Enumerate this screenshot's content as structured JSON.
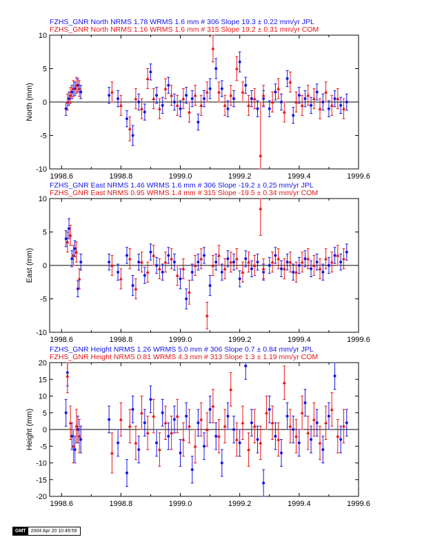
{
  "colors": {
    "jpl": "#1414e6",
    "com": "#e61414",
    "axis": "#000000"
  },
  "chart_data": [
    {
      "type": "scatter",
      "ylabel": "North (mm)",
      "xlim": [
        1998.56,
        1999.6
      ],
      "ylim": [
        -10,
        10
      ],
      "xticks": [
        1998.6,
        1998.8,
        1999.0,
        1999.2,
        1999.4,
        1999.6
      ],
      "yticks": [
        -10,
        -5,
        0,
        5,
        10
      ],
      "xtick_labels": [
        "1998.6",
        "1998.8",
        "1999.0",
        "1999.2",
        "1999.4",
        "1999.6"
      ],
      "ytick_labels": [
        "-10",
        "-5",
        "0",
        "5",
        "10"
      ],
      "legend": [
        {
          "text": "FZHS_GNR North NRMS 1.78 WRMS  1.6 mm # 306 Slope   19.3 ±  0.22 mm/yr JPL",
          "color": "#1414e6"
        },
        {
          "text": "FZHS_GNR North NRMS 1.16 WRMS  1.6 mm # 315 Slope   19.2 ±  0.31 mm/yr COM",
          "color": "#e61414"
        }
      ],
      "series": [
        {
          "color": "#1414e6",
          "marker": "circle",
          "x": [
            1998.615,
            1998.625,
            1998.635,
            1998.645,
            1998.655,
            1998.665,
            1998.76,
            1998.79,
            1998.82,
            1998.84,
            1998.86,
            1998.88,
            1998.9,
            1998.92,
            1998.94,
            1998.96,
            1998.98,
            1999.0,
            1999.02,
            1999.04,
            1999.06,
            1999.08,
            1999.1,
            1999.12,
            1999.14,
            1999.16,
            1999.18,
            1999.2,
            1999.22,
            1999.24,
            1999.26,
            1999.28,
            1999.3,
            1999.32,
            1999.34,
            1999.36,
            1999.38,
            1999.4,
            1999.42,
            1999.44,
            1999.46,
            1999.48,
            1999.5,
            1999.52,
            1999.54,
            1999.56
          ],
          "y": [
            -1,
            0.5,
            1.5,
            2,
            2.5,
            1.5,
            1,
            0.5,
            -2.5,
            -5,
            0,
            -1.5,
            4.5,
            1,
            -0.5,
            2.5,
            0,
            -1,
            1,
            0.5,
            -3,
            0.5,
            2,
            5,
            2,
            -1,
            0.5,
            6,
            2.5,
            0.5,
            -1,
            0.5,
            -1,
            1.5,
            0,
            3.5,
            -2,
            1,
            0.5,
            -0.5,
            1.5,
            0,
            -1,
            0.5,
            -0.5,
            0
          ],
          "err": [
            1,
            1,
            1,
            1,
            1,
            1,
            1.2,
            1.2,
            1.2,
            1.5,
            1.2,
            1.2,
            1.2,
            1.2,
            1.2,
            1.2,
            1.2,
            1.2,
            1.2,
            1.2,
            1.2,
            1.2,
            1.5,
            1.5,
            1.2,
            1.2,
            1.2,
            1.5,
            1.2,
            1.2,
            1.2,
            1.2,
            1.2,
            1.2,
            1.2,
            1.2,
            1.2,
            1.2,
            1.2,
            1.2,
            1.2,
            1.2,
            1.2,
            1.2,
            1.2,
            1.2
          ]
        },
        {
          "color": "#e61414",
          "marker": "triangle",
          "x": [
            1998.62,
            1998.63,
            1998.64,
            1998.65,
            1998.66,
            1998.77,
            1998.8,
            1998.83,
            1998.85,
            1998.87,
            1998.89,
            1998.91,
            1998.93,
            1998.95,
            1998.97,
            1998.99,
            1999.01,
            1999.03,
            1999.05,
            1999.07,
            1999.09,
            1999.11,
            1999.13,
            1999.15,
            1999.17,
            1999.19,
            1999.21,
            1999.23,
            1999.25,
            1999.27,
            1999.28,
            1999.31,
            1999.33,
            1999.35,
            1999.37,
            1999.39,
            1999.41,
            1999.43,
            1999.45,
            1999.47,
            1999.49,
            1999.51,
            1999.53,
            1999.55
          ],
          "y": [
            0,
            1,
            2,
            2.5,
            2,
            1.5,
            -0.5,
            -4,
            0.5,
            -1,
            3.5,
            0.5,
            -1,
            2,
            1,
            -0.5,
            0.5,
            -1.5,
            1,
            -0.5,
            1.5,
            8,
            1.5,
            -0.5,
            1,
            5,
            1.5,
            -0.5,
            0.5,
            -8,
            1,
            0,
            2,
            -1.5,
            3,
            0,
            -0.5,
            1,
            0.5,
            -1,
            1.5,
            -0.5,
            0.5,
            -1
          ],
          "err": [
            1.2,
            1.2,
            1.2,
            1.2,
            1.2,
            1.5,
            1.5,
            1.8,
            1.5,
            1.5,
            1.5,
            1.5,
            1.5,
            1.5,
            1.5,
            1.5,
            1.5,
            1.5,
            1.5,
            1.5,
            1.5,
            2,
            1.5,
            1.5,
            1.5,
            1.8,
            1.5,
            1.5,
            1.5,
            8,
            1.5,
            1.5,
            1.5,
            1.5,
            1.5,
            1.5,
            1.5,
            1.5,
            1.5,
            1.5,
            1.5,
            1.5,
            1.5,
            1.5
          ]
        }
      ]
    },
    {
      "type": "scatter",
      "ylabel": "East (mm)",
      "xlim": [
        1998.56,
        1999.6
      ],
      "ylim": [
        -10,
        10
      ],
      "xticks": [
        1998.6,
        1998.8,
        1999.0,
        1999.2,
        1999.4,
        1999.6
      ],
      "yticks": [
        -10,
        -5,
        0,
        5,
        10
      ],
      "xtick_labels": [
        "1998.6",
        "1998.8",
        "1999.0",
        "1999.2",
        "1999.4",
        "1999.6"
      ],
      "ytick_labels": [
        "-10",
        "-5",
        "0",
        "5",
        "10"
      ],
      "legend": [
        {
          "text": "FZHS_GNR East NRMS 1.46 WRMS  1.6 mm # 306 Slope  -19.2 ±  0.25 mm/yr JPL",
          "color": "#1414e6"
        },
        {
          "text": "FZHS_GNR East NRMS 0.95 WRMS  1.4 mm # 315 Slope  -19.5 ±  0.34 mm/yr COM",
          "color": "#e61414"
        }
      ],
      "series": [
        {
          "color": "#1414e6",
          "marker": "circle",
          "x": [
            1998.615,
            1998.625,
            1998.635,
            1998.645,
            1998.655,
            1998.665,
            1998.76,
            1998.79,
            1998.82,
            1998.84,
            1998.86,
            1998.88,
            1998.9,
            1998.92,
            1998.94,
            1998.96,
            1998.98,
            1999.0,
            1999.02,
            1999.04,
            1999.06,
            1999.08,
            1999.1,
            1999.12,
            1999.14,
            1999.16,
            1999.18,
            1999.2,
            1999.22,
            1999.24,
            1999.26,
            1999.28,
            1999.3,
            1999.32,
            1999.34,
            1999.36,
            1999.38,
            1999.4,
            1999.42,
            1999.44,
            1999.46,
            1999.48,
            1999.5,
            1999.52,
            1999.54,
            1999.56
          ],
          "y": [
            4,
            5.5,
            1,
            2.5,
            -3.5,
            0.5,
            0.5,
            -1,
            1.5,
            -3,
            0.5,
            -1.5,
            2,
            0,
            -1,
            1.5,
            0.5,
            -2,
            -5,
            -1,
            0.5,
            1.5,
            -3,
            0.5,
            -1,
            1,
            0.5,
            -2,
            1,
            -0.5,
            0.5,
            -1,
            0,
            1.5,
            -0.5,
            0.5,
            -1,
            0,
            1,
            -0.5,
            0.5,
            -1,
            0,
            1.5,
            0.5,
            2
          ],
          "err": [
            1.2,
            1.5,
            1.2,
            1.2,
            1.2,
            1.2,
            1.2,
            1.2,
            1.2,
            1.5,
            1.2,
            1.2,
            1.2,
            1.2,
            1.2,
            1.2,
            1.2,
            1.5,
            1.5,
            1.2,
            1.2,
            1.2,
            1.5,
            1.2,
            1.2,
            1.2,
            1.2,
            1.2,
            1.2,
            1.2,
            1.2,
            1.2,
            1.2,
            1.2,
            1.2,
            1.2,
            1.2,
            1.2,
            1.2,
            1.2,
            1.2,
            1.2,
            1.2,
            1.2,
            1.2,
            1.2
          ]
        },
        {
          "color": "#e61414",
          "marker": "triangle",
          "x": [
            1998.62,
            1998.63,
            1998.64,
            1998.65,
            1998.66,
            1998.77,
            1998.8,
            1998.83,
            1998.85,
            1998.87,
            1998.89,
            1998.91,
            1998.93,
            1998.95,
            1998.97,
            1998.99,
            1999.01,
            1999.03,
            1999.05,
            1999.07,
            1999.09,
            1999.11,
            1999.13,
            1999.15,
            1999.17,
            1999.19,
            1999.21,
            1999.23,
            1999.25,
            1999.27,
            1999.28,
            1999.31,
            1999.33,
            1999.35,
            1999.37,
            1999.39,
            1999.41,
            1999.43,
            1999.45,
            1999.47,
            1999.49,
            1999.51,
            1999.53,
            1999.55
          ],
          "y": [
            3.5,
            4.5,
            1.5,
            2,
            -2,
            0,
            -2,
            1,
            -3.5,
            0.5,
            -1,
            1.5,
            -0.5,
            0.5,
            1,
            -1.5,
            -0.5,
            -4,
            0,
            1,
            -7.5,
            0,
            1.5,
            -0.5,
            0.5,
            1,
            -1,
            0.5,
            0,
            8.5,
            -0.5,
            0.5,
            1,
            -0.5,
            0.5,
            -1,
            0.5,
            1,
            0,
            -0.5,
            1,
            0.5,
            1.5,
            1
          ],
          "err": [
            1.5,
            1.5,
            1.5,
            1.5,
            1.5,
            1.5,
            1.5,
            1.5,
            1.5,
            1.5,
            1.5,
            1.5,
            1.5,
            1.5,
            1.5,
            1.5,
            1.5,
            1.8,
            1.5,
            1.5,
            2,
            1.5,
            1.5,
            1.5,
            1.5,
            1.5,
            1.5,
            1.5,
            1.5,
            4,
            1.5,
            1.5,
            1.5,
            1.5,
            1.5,
            1.5,
            1.5,
            1.5,
            1.5,
            1.5,
            1.5,
            1.5,
            1.5,
            1.5
          ]
        }
      ]
    },
    {
      "type": "scatter",
      "ylabel": "Height (mm)",
      "xlim": [
        1998.56,
        1999.6
      ],
      "ylim": [
        -20,
        20
      ],
      "xticks": [
        1998.6,
        1998.8,
        1999.0,
        1999.2,
        1999.4,
        1999.6
      ],
      "yticks": [
        -20,
        -15,
        -10,
        -5,
        0,
        5,
        10,
        15,
        20
      ],
      "xtick_labels": [
        "1998.6",
        "1998.8",
        "1999.0",
        "1999.2",
        "1999.4",
        "1999.6"
      ],
      "ytick_labels": [
        "-20",
        "-15",
        "-10",
        "-5",
        "0",
        "5",
        "10",
        "15",
        "20"
      ],
      "legend": [
        {
          "text": "FZHS_GNR Height NRMS 1.26 WRMS  5.0 mm # 306 Slope    0.7 ±  0.84 mm/yr JPL",
          "color": "#1414e6"
        },
        {
          "text": "FZHS_GNR Height NRMS 0.81 WRMS  4.3 mm # 313 Slope    1.3 ±  1.19 mm/yr COM",
          "color": "#e61414"
        }
      ],
      "series": [
        {
          "color": "#1414e6",
          "marker": "circle",
          "x": [
            1998.615,
            1998.62,
            1998.635,
            1998.645,
            1998.655,
            1998.665,
            1998.76,
            1998.79,
            1998.82,
            1998.84,
            1998.86,
            1998.88,
            1998.9,
            1998.92,
            1998.94,
            1998.96,
            1998.98,
            1999.0,
            1999.02,
            1999.04,
            1999.06,
            1999.08,
            1999.1,
            1999.12,
            1999.14,
            1999.16,
            1999.18,
            1999.2,
            1999.22,
            1999.24,
            1999.26,
            1999.28,
            1999.3,
            1999.32,
            1999.34,
            1999.36,
            1999.38,
            1999.4,
            1999.42,
            1999.44,
            1999.46,
            1999.48,
            1999.5,
            1999.52,
            1999.54,
            1999.56
          ],
          "y": [
            5,
            17,
            -2,
            -6,
            0,
            -3,
            3,
            -4,
            -13,
            6,
            -6,
            2,
            9,
            -4,
            5,
            -2,
            3,
            -7,
            4,
            -12,
            2,
            -5,
            6,
            -2,
            -10,
            4,
            0,
            -4,
            19,
            2,
            -3,
            -16,
            6,
            -2,
            -7,
            4,
            0,
            -4,
            8,
            -3,
            2,
            -6,
            4,
            16,
            -3,
            2
          ],
          "err": [
            4,
            4,
            4,
            4,
            4,
            4,
            4,
            4,
            4,
            4,
            4,
            4,
            4,
            4,
            4,
            4,
            4,
            4,
            4,
            4,
            4,
            4,
            4,
            4,
            4,
            4,
            4,
            4,
            4,
            4,
            4,
            4,
            4,
            4,
            4,
            4,
            4,
            4,
            4,
            4,
            4,
            4,
            4,
            4,
            4,
            4
          ]
        },
        {
          "color": "#e61414",
          "marker": "triangle",
          "x": [
            1998.62,
            1998.63,
            1998.64,
            1998.65,
            1998.66,
            1998.77,
            1998.8,
            1998.83,
            1998.85,
            1998.87,
            1998.89,
            1998.91,
            1998.93,
            1998.95,
            1998.97,
            1998.99,
            1999.01,
            1999.03,
            1999.05,
            1999.07,
            1999.09,
            1999.11,
            1999.13,
            1999.15,
            1999.17,
            1999.19,
            1999.21,
            1999.23,
            1999.25,
            1999.27,
            1999.29,
            1999.31,
            1999.33,
            1999.35,
            1999.37,
            1999.39,
            1999.41,
            1999.43,
            1999.45,
            1999.47,
            1999.49,
            1999.51,
            1999.53,
            1999.55
          ],
          "y": [
            16,
            2,
            -5,
            1,
            -2,
            -7,
            3,
            1,
            -4,
            5,
            -1,
            4,
            -6,
            2,
            -1,
            4,
            -3,
            1,
            -5,
            3,
            0,
            7,
            -2,
            1,
            12,
            -3,
            2,
            -6,
            1,
            -4,
            5,
            2,
            -3,
            14,
            1,
            -2,
            5,
            -1,
            3,
            -4,
            2,
            6,
            -2,
            1
          ],
          "err": [
            5,
            5,
            5,
            5,
            5,
            6,
            5,
            5,
            5,
            5,
            5,
            5,
            5,
            5,
            5,
            5,
            5,
            5,
            5,
            5,
            5,
            5,
            5,
            5,
            5,
            5,
            5,
            5,
            5,
            5,
            5,
            5,
            5,
            5,
            5,
            5,
            5,
            5,
            5,
            5,
            5,
            5,
            5,
            5
          ]
        }
      ]
    }
  ],
  "footer": {
    "logo_text": "GMT",
    "timestamp": "2004 Apr 20 10:49:59"
  }
}
